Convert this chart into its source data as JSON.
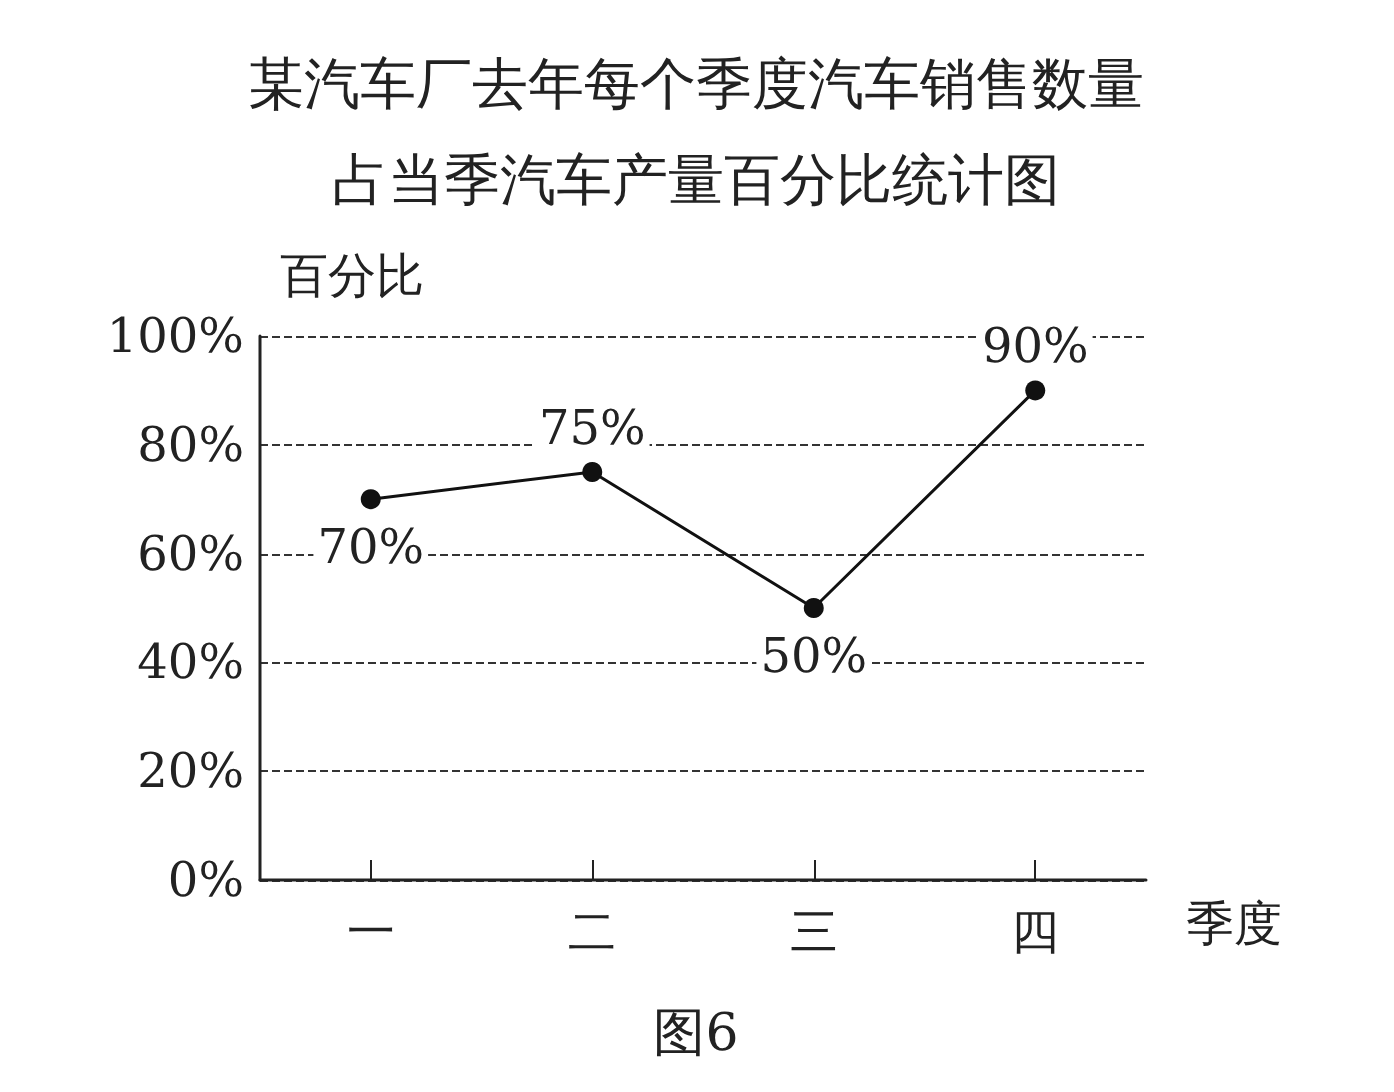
{
  "chart_data": {
    "type": "line",
    "title": "某汽车厂去年每个季度汽车销售数量占当季汽车产量百分比统计图",
    "xlabel": "季度",
    "ylabel": "百分比",
    "annotations": [
      "图6"
    ],
    "categories": [
      "一",
      "二",
      "三",
      "四"
    ],
    "series": [
      {
        "color": "#111111",
        "values": [
          70,
          75,
          50,
          90
        ],
        "value_labels": [
          "70%",
          "75%",
          "50%",
          "90%"
        ]
      }
    ],
    "ylim": [
      0,
      100
    ],
    "yticks": [
      {
        "value": 0,
        "label": "0%"
      },
      {
        "value": 20,
        "label": "20%"
      },
      {
        "value": 40,
        "label": "40%"
      },
      {
        "value": 60,
        "label": "60%"
      },
      {
        "value": 80,
        "label": "80%"
      },
      {
        "value": 100,
        "label": "100%"
      }
    ],
    "grid": "y",
    "marker": "circle",
    "line_style": "solid"
  }
}
